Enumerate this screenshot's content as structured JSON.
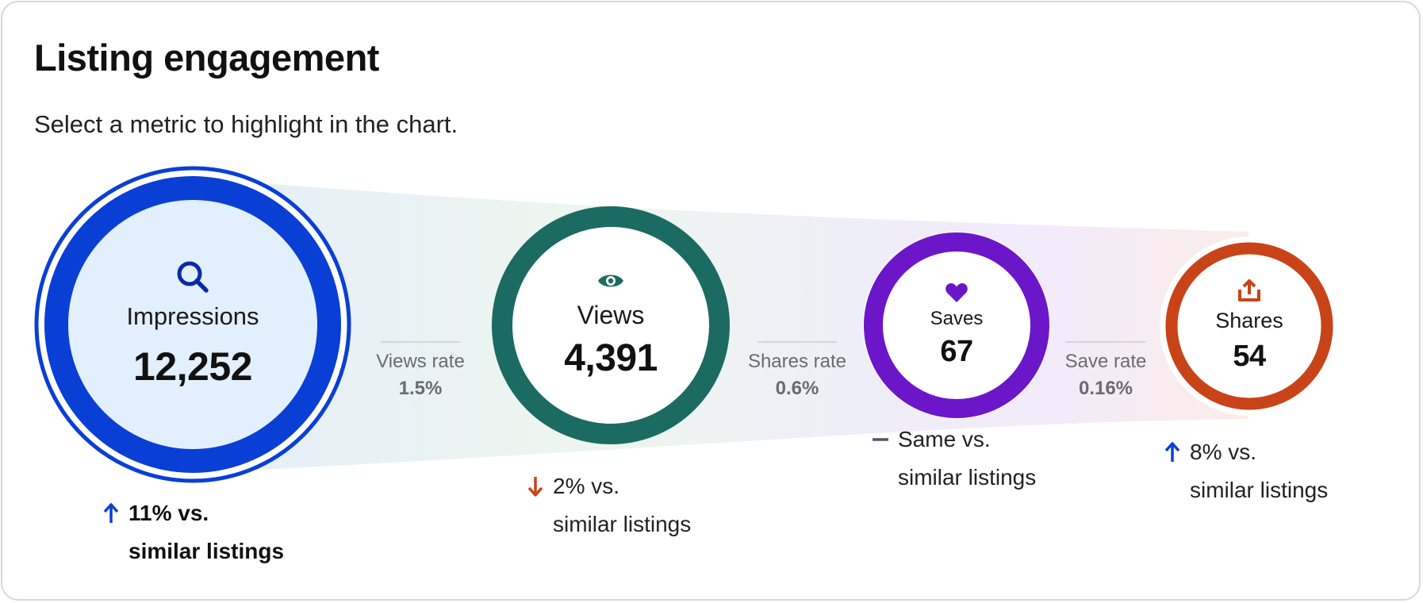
{
  "header": {
    "title": "Listing engagement",
    "subtitle": "Select a metric to highlight in the chart."
  },
  "metrics": [
    {
      "label": "Impressions",
      "value": "12,252",
      "icon": "search-icon",
      "color": "#0a3fd6",
      "fill": "#e2effc",
      "delta": {
        "direction": "up",
        "text1": "11% vs.",
        "text2": "similar listings",
        "selected": true
      }
    },
    {
      "label": "Views",
      "value": "4,391",
      "icon": "eye-icon",
      "color": "#1b6b62",
      "fill": "#ffffff",
      "delta": {
        "direction": "down",
        "text1": "2% vs.",
        "text2": "similar listings",
        "selected": false
      }
    },
    {
      "label": "Saves",
      "value": "67",
      "icon": "heart-icon",
      "color": "#6b17c9",
      "fill": "#ffffff",
      "delta": {
        "direction": "same",
        "text1": "Same vs.",
        "text2": "similar listings",
        "selected": false
      }
    },
    {
      "label": "Shares",
      "value": "54",
      "icon": "share-icon",
      "color": "#c84318",
      "fill": "#ffffff",
      "delta": {
        "direction": "up",
        "text1": "8% vs.",
        "text2": "similar listings",
        "selected": false
      }
    }
  ],
  "rates": [
    {
      "label": "Views rate",
      "value": "1.5%"
    },
    {
      "label": "Shares rate",
      "value": "0.6%"
    },
    {
      "label": "Save rate",
      "value": "0.16%"
    }
  ],
  "colors": {
    "up": "#0a3fd6",
    "down": "#c84318",
    "same": "#555560"
  }
}
